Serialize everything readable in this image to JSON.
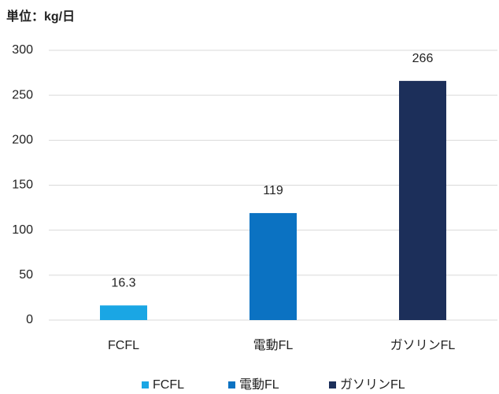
{
  "chart_data": {
    "type": "bar",
    "title": "単位：kg/日",
    "categories": [
      "FCFL",
      "電動FL",
      "ガソリンFL"
    ],
    "values": [
      16.3,
      119,
      266
    ],
    "colors": [
      "#1aa6e4",
      "#0b72c2",
      "#1c2f5a"
    ],
    "ylim": [
      0,
      300
    ],
    "yticks": [
      0,
      50,
      100,
      150,
      200,
      250,
      300
    ],
    "grid": true,
    "legend": "bottom"
  }
}
